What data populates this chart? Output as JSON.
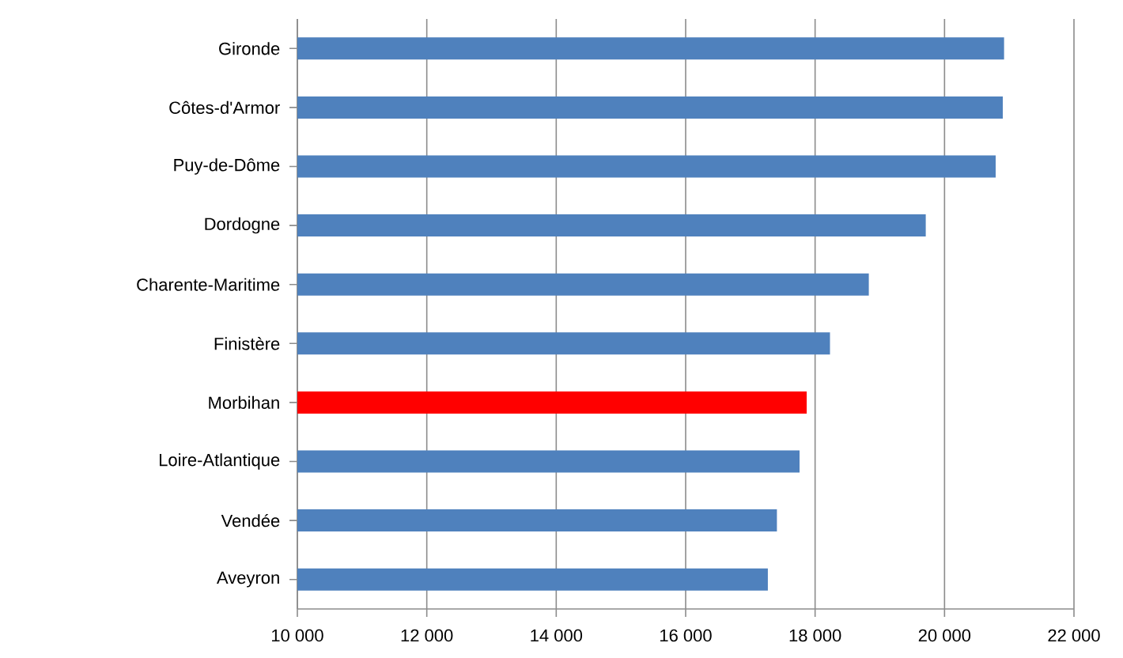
{
  "chart_data": {
    "type": "bar",
    "orientation": "horizontal",
    "categories": [
      "Gironde",
      "Côtes-d'Armor",
      "Puy-de-Dôme",
      "Dordogne",
      "Charente-Maritime",
      "Finistère",
      "Morbihan",
      "Loire-Atlantique",
      "Vendée",
      "Aveyron"
    ],
    "values": [
      20920,
      20900,
      20790,
      19710,
      18830,
      18230,
      17870,
      17760,
      17410,
      17270
    ],
    "colors": [
      "#4f81bd",
      "#4f81bd",
      "#4f81bd",
      "#4f81bd",
      "#4f81bd",
      "#4f81bd",
      "#ff0000",
      "#4f81bd",
      "#4f81bd",
      "#4f81bd"
    ],
    "xlim": [
      10000,
      22000
    ],
    "xticks": [
      {
        "value": 10000,
        "label": "10 000"
      },
      {
        "value": 12000,
        "label": "12 000"
      },
      {
        "value": 14000,
        "label": "14 000"
      },
      {
        "value": 16000,
        "label": "16 000"
      },
      {
        "value": 18000,
        "label": "18 000"
      },
      {
        "value": 20000,
        "label": "20 000"
      },
      {
        "value": 22000,
        "label": "22 000"
      }
    ],
    "grid": "x"
  }
}
